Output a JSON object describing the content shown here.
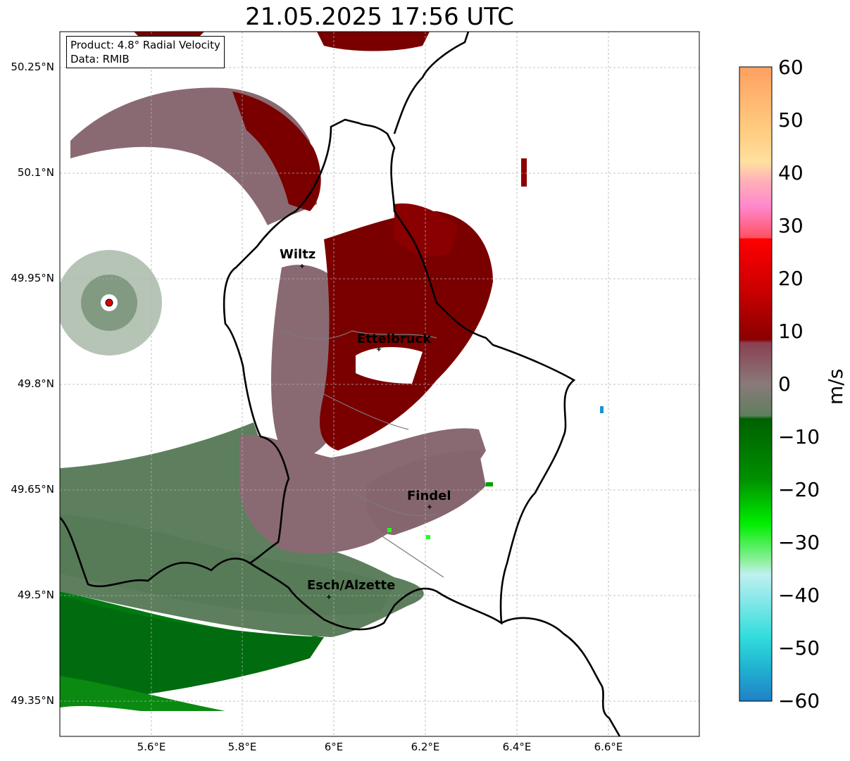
{
  "title": "21.05.2025 17:56 UTC",
  "info": {
    "product": "Product: 4.8° Radial Velocity",
    "data": "Data: RMIB"
  },
  "y_ticks": [
    "50.25°N",
    "50.1°N",
    "49.95°N",
    "49.8°N",
    "49.65°N",
    "49.5°N",
    "49.35°N"
  ],
  "x_ticks": [
    "5.6°E",
    "5.8°E",
    "6°E",
    "6.2°E",
    "6.4°E",
    "6.6°E"
  ],
  "cities": [
    "Wiltz",
    "Ettelbruck",
    "Findel",
    "Esch/Alzette"
  ],
  "colorbar": {
    "unit": "m/s",
    "ticks": [
      "60",
      "50",
      "40",
      "30",
      "20",
      "10",
      "0",
      "−10",
      "−20",
      "−30",
      "−40",
      "−50",
      "−60"
    ]
  },
  "colors": {
    "approaching_green": "#006b0f",
    "receding_red": "#7a0000",
    "near_zero": "#8a6a72",
    "near_zero_green": "#5e7f5e",
    "radar_site": "#e00000"
  }
}
